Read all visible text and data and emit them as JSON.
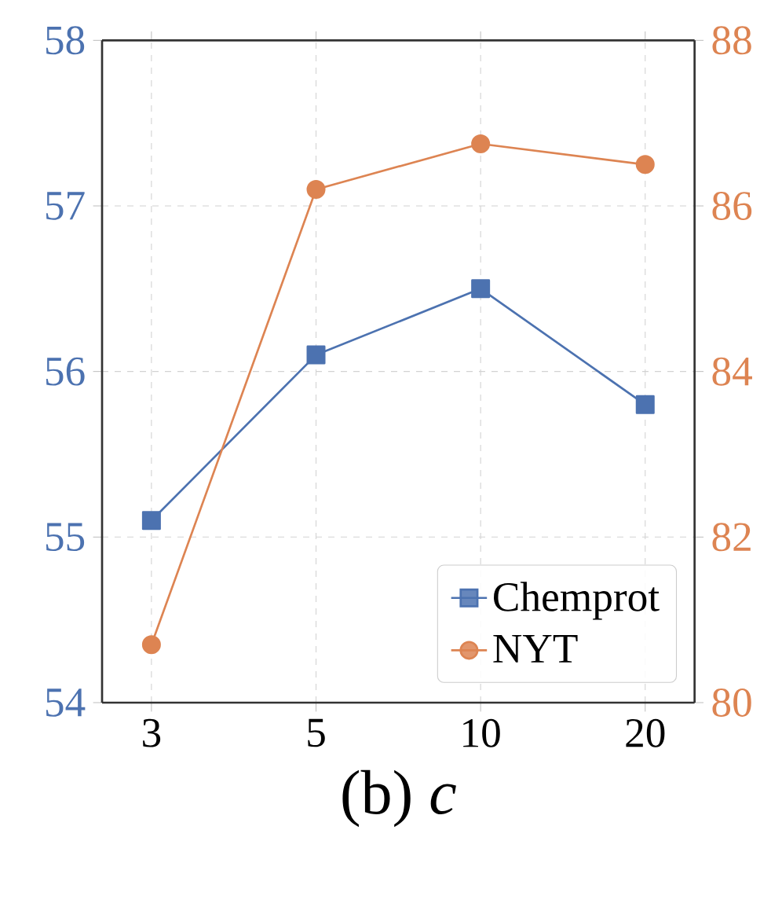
{
  "chart_data": {
    "type": "line",
    "xlabel": "(b) *c*",
    "categories": [
      "3",
      "5",
      "10",
      "20"
    ],
    "series": [
      {
        "name": "Chemprot",
        "color": "#4c72b0",
        "marker": "square",
        "values": [
          55.1,
          56.1,
          56.5,
          55.8
        ]
      },
      {
        "name": "NYT",
        "color": "#dd8452",
        "marker": "circle",
        "axis": "y2",
        "values": [
          80.7,
          86.2,
          86.75,
          86.5
        ]
      }
    ],
    "ylim": [
      54,
      58
    ],
    "yticks": [
      54,
      55,
      56,
      57,
      58
    ],
    "y2lim": [
      80,
      88
    ],
    "y2ticks": [
      80,
      82,
      84,
      86,
      88
    ],
    "grid": true,
    "legend": "bottom right"
  }
}
